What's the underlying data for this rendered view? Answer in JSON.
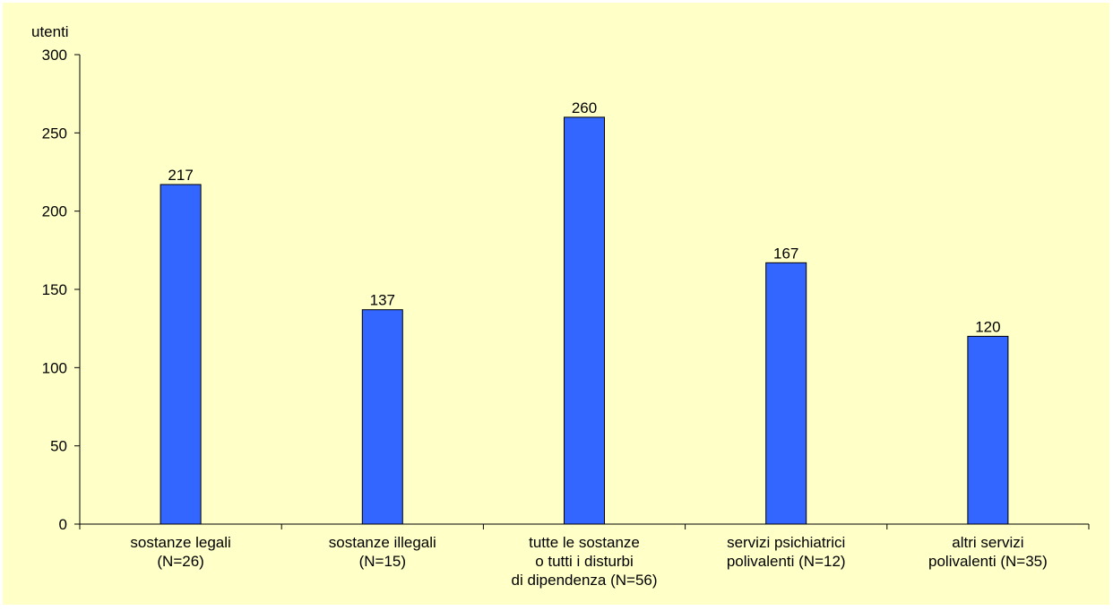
{
  "chart_data": {
    "type": "bar",
    "title": "",
    "ylabel": "utenti",
    "xlabel": "",
    "ylim": [
      0,
      300
    ],
    "yticks": [
      0,
      50,
      100,
      150,
      200,
      250,
      300
    ],
    "grid": false,
    "legend": "none",
    "colors": {
      "bar": "#3366ff",
      "background": "#ffffc8"
    },
    "categories": [
      [
        "sostanze legali",
        "(N=26)"
      ],
      [
        "sostanze illegali",
        "(N=15)"
      ],
      [
        "tutte le sostanze",
        "o tutti i disturbi",
        "di dipendenza (N=56)"
      ],
      [
        "servizi psichiatrici",
        "polivalenti (N=12)"
      ],
      [
        "altri servizi",
        "polivalenti (N=35)"
      ]
    ],
    "values": [
      217,
      137,
      260,
      167,
      120
    ]
  }
}
